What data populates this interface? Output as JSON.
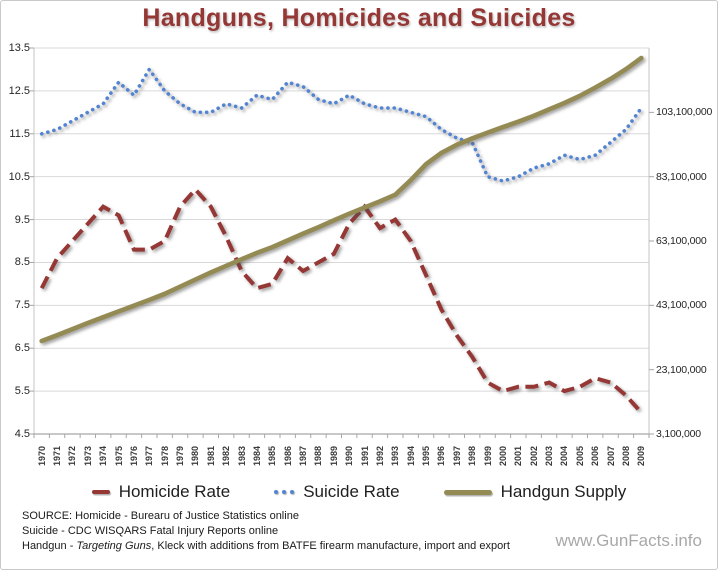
{
  "chart_data": {
    "type": "line",
    "title": "Handguns, Homicides and Suicides",
    "x": [
      "1970",
      "1971",
      "1972",
      "1973",
      "1974",
      "1975",
      "1976",
      "1977",
      "1978",
      "1979",
      "1980",
      "1981",
      "1982",
      "1983",
      "1984",
      "1985",
      "1986",
      "1987",
      "1988",
      "1989",
      "1990",
      "1991",
      "1992",
      "1993",
      "1994",
      "1995",
      "1996",
      "1997",
      "1998",
      "1999",
      "2000",
      "2001",
      "2002",
      "2003",
      "2004",
      "2005",
      "2006",
      "2007",
      "2008",
      "2009"
    ],
    "series": [
      {
        "name": "Homicide Rate",
        "axis": "left",
        "style": "dashed",
        "color": "#953735",
        "values": [
          7.9,
          8.6,
          9.0,
          9.4,
          9.8,
          9.6,
          8.8,
          8.8,
          9.0,
          9.8,
          10.2,
          9.8,
          9.1,
          8.3,
          7.9,
          8.0,
          8.6,
          8.3,
          8.5,
          8.7,
          9.4,
          9.8,
          9.3,
          9.5,
          9.0,
          8.2,
          7.4,
          6.8,
          6.3,
          5.7,
          5.5,
          5.6,
          5.6,
          5.7,
          5.5,
          5.6,
          5.8,
          5.7,
          5.4,
          5.0
        ]
      },
      {
        "name": "Suicide Rate",
        "axis": "left",
        "style": "dotted",
        "color": "#5384d1",
        "values": [
          11.5,
          11.6,
          11.8,
          12.0,
          12.2,
          12.7,
          12.4,
          13.0,
          12.5,
          12.2,
          12.0,
          12.0,
          12.2,
          12.1,
          12.4,
          12.3,
          12.7,
          12.6,
          12.3,
          12.2,
          12.4,
          12.2,
          12.1,
          12.1,
          12.0,
          11.9,
          11.6,
          11.4,
          11.3,
          10.5,
          10.4,
          10.5,
          10.7,
          10.8,
          11.0,
          10.9,
          11.0,
          11.3,
          11.6,
          12.1
        ]
      },
      {
        "name": "Handgun Supply",
        "axis": "right",
        "style": "solid",
        "color": "#948a54",
        "values": [
          32000000,
          33800000,
          35700000,
          37600000,
          39400000,
          41200000,
          43000000,
          44800000,
          46700000,
          48900000,
          51100000,
          53300000,
          55400000,
          57400000,
          59400000,
          61200000,
          63300000,
          65400000,
          67400000,
          69500000,
          71600000,
          73500000,
          75400000,
          77500000,
          82000000,
          87000000,
          90500000,
          93000000,
          95000000,
          96800000,
          98500000,
          100200000,
          102000000,
          104000000,
          106000000,
          108200000,
          110800000,
          113500000,
          116500000,
          120000000
        ]
      }
    ],
    "left_axis": {
      "min": 4.5,
      "max": 13.5,
      "tick_step": 1.0,
      "ticks": [
        13.5,
        12.5,
        11.5,
        10.5,
        9.5,
        8.5,
        7.5,
        6.5,
        5.5,
        4.5
      ]
    },
    "right_axis": {
      "min": 3100000,
      "max": 123100000,
      "tick_step": 20000000,
      "ticks": [
        {
          "value": 103100000,
          "label": "103,100,000"
        },
        {
          "value": 83100000,
          "label": "83,100,000"
        },
        {
          "value": 63100000,
          "label": "63,100,000"
        },
        {
          "value": 43100000,
          "label": "43,100,000"
        },
        {
          "value": 23100000,
          "label": "23,100,000"
        },
        {
          "value": 3100000,
          "label": "3,100,000"
        }
      ]
    },
    "grid": "horizontal",
    "legend_position": "bottom"
  },
  "sources": {
    "line1": "SOURCE: Homicide - Burearu of Justice Statistics online",
    "line2": "Suicide - CDC WISQARS Fatal Injury Reports online",
    "line3_prefix": "Handgun - ",
    "line3_italic": "Targeting Guns",
    "line3_suffix": ", Kleck with additions from BATFE firearm manufacture, import and export"
  },
  "footer": {
    "watermark": "www.GunFacts.info"
  }
}
